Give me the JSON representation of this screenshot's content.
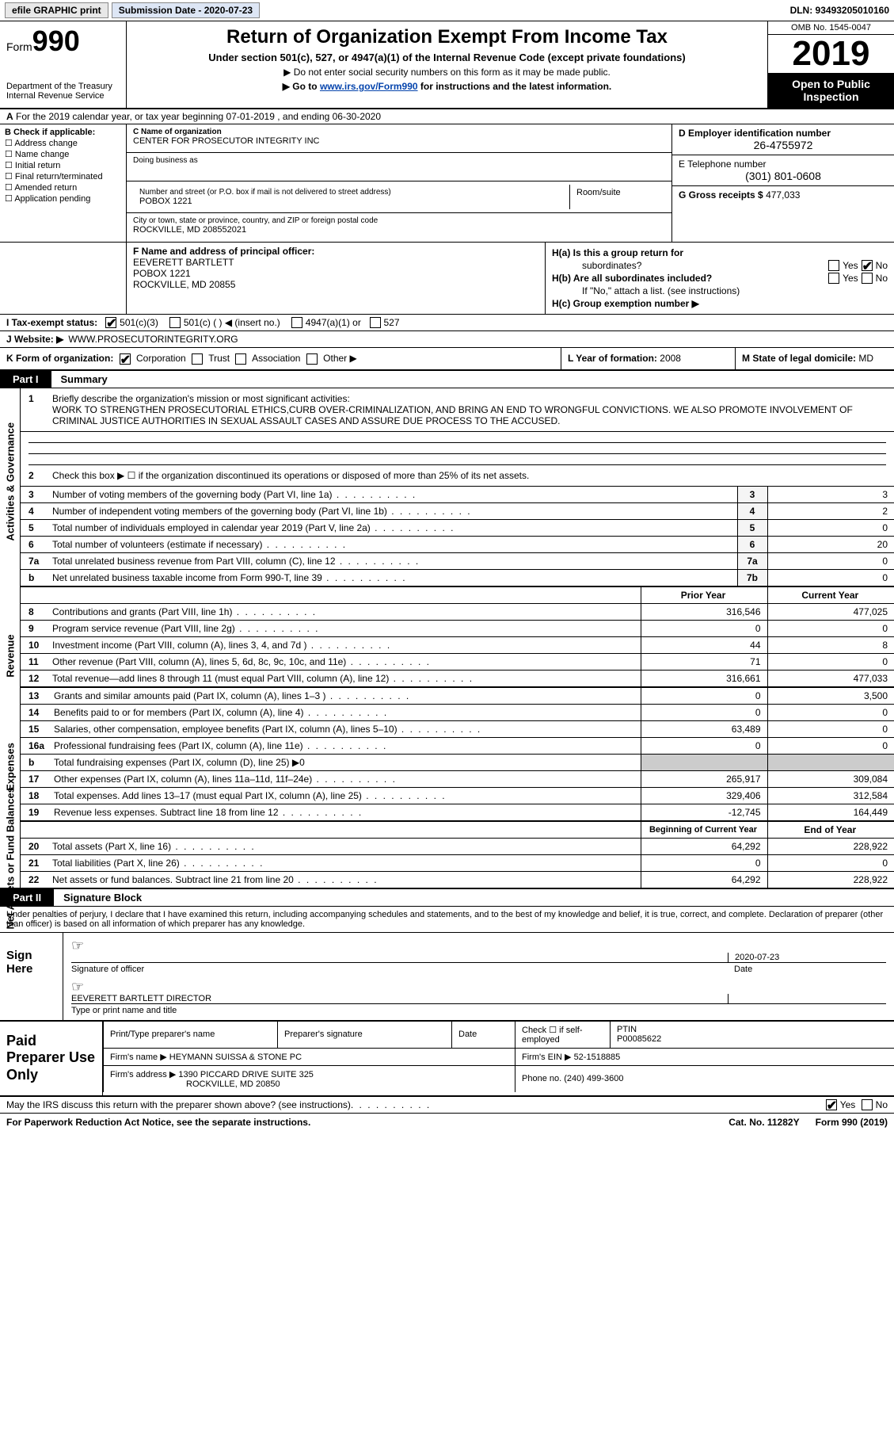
{
  "topbar": {
    "efile": "efile GRAPHIC print",
    "sub_date": "Submission Date - 2020-07-23",
    "dln": "DLN: 93493205010160"
  },
  "header": {
    "form_word": "Form",
    "form_num": "990",
    "dept": "Department of the Treasury\nInternal Revenue Service",
    "title": "Return of Organization Exempt From Income Tax",
    "sub": "Under section 501(c), 527, or 4947(a)(1) of the Internal Revenue Code (except private foundations)",
    "note1": "▶ Do not enter social security numbers on this form as it may be made public.",
    "note2_pre": "▶ Go to ",
    "note2_link": "www.irs.gov/Form990",
    "note2_post": " for instructions and the latest information.",
    "omb": "OMB No. 1545-0047",
    "year": "2019",
    "open": "Open to Public Inspection"
  },
  "rowA": "For the 2019 calendar year, or tax year beginning 07-01-2019    , and ending 06-30-2020",
  "boxB": {
    "hdr": "B Check if applicable:",
    "items": [
      "Address change",
      "Name change",
      "Initial return",
      "Final return/terminated",
      "Amended return",
      "Application pending"
    ]
  },
  "boxC": {
    "name_lbl": "C Name of organization",
    "name": "CENTER FOR PROSECUTOR INTEGRITY INC",
    "dba_lbl": "Doing business as",
    "addr_lbl": "Number and street (or P.O. box if mail is not delivered to street address)",
    "room_lbl": "Room/suite",
    "addr": "POBOX 1221",
    "city_lbl": "City or town, state or province, country, and ZIP or foreign postal code",
    "city": "ROCKVILLE, MD  208552021"
  },
  "boxD": {
    "ein_lbl": "D Employer identification number",
    "ein": "26-4755972",
    "tel_lbl": "E Telephone number",
    "tel": "(301) 801-0608",
    "gross_lbl": "G Gross receipts $",
    "gross": "477,033"
  },
  "boxF": {
    "lbl": "F  Name and address of principal officer:",
    "name": "EEVERETT BARTLETT",
    "addr1": "POBOX 1221",
    "addr2": "ROCKVILLE, MD  20855"
  },
  "boxH": {
    "ha": "H(a)  Is this a group return for",
    "ha2": "subordinates?",
    "hb": "H(b)  Are all subordinates included?",
    "hb2": "If \"No,\" attach a list. (see instructions)",
    "hc": "H(c)  Group exemption number ▶",
    "yes": "Yes",
    "no": "No"
  },
  "rowI": {
    "lbl": "I   Tax-exempt status:",
    "o1": "501(c)(3)",
    "o2": "501(c) (  ) ◀ (insert no.)",
    "o3": "4947(a)(1) or",
    "o4": "527"
  },
  "rowJ": {
    "lbl": "J   Website: ▶",
    "val": "WWW.PROSECUTORINTEGRITY.ORG"
  },
  "rowK": {
    "lbl": "K Form of organization:",
    "o1": "Corporation",
    "o2": "Trust",
    "o3": "Association",
    "o4": "Other ▶"
  },
  "rowL": {
    "lbl": "L Year of formation:",
    "val": "2008"
  },
  "rowM": {
    "lbl": "M State of legal domicile:",
    "val": "MD"
  },
  "part1": {
    "tag": "Part I",
    "title": "Summary"
  },
  "summary": {
    "l1_lbl": "Briefly describe the organization's mission or most significant activities:",
    "l1_txt": "WORK TO STRENGTHEN PROSECUTORIAL ETHICS,CURB OVER-CRIMINALIZATION, AND BRING AN END TO WRONGFUL CONVICTIONS. WE ALSO PROMOTE INVOLVEMENT OF CRIMINAL JUSTICE AUTHORITIES IN SEXUAL ASSAULT CASES AND ASSURE DUE PROCESS TO THE ACCUSED.",
    "l2": "Check this box ▶ ☐  if the organization discontinued its operations or disposed of more than 25% of its net assets."
  },
  "gov_rows": [
    {
      "n": "3",
      "lab": "Number of voting members of the governing body (Part VI, line 1a)",
      "box": "3",
      "val": "3"
    },
    {
      "n": "4",
      "lab": "Number of independent voting members of the governing body (Part VI, line 1b)",
      "box": "4",
      "val": "2"
    },
    {
      "n": "5",
      "lab": "Total number of individuals employed in calendar year 2019 (Part V, line 2a)",
      "box": "5",
      "val": "0"
    },
    {
      "n": "6",
      "lab": "Total number of volunteers (estimate if necessary)",
      "box": "6",
      "val": "20"
    },
    {
      "n": "7a",
      "lab": "Total unrelated business revenue from Part VIII, column (C), line 12",
      "box": "7a",
      "val": "0"
    },
    {
      "n": "b",
      "lab": "Net unrelated business taxable income from Form 990-T, line 39",
      "box": "7b",
      "val": "0"
    }
  ],
  "yr_hdr": {
    "py": "Prior Year",
    "cy": "Current Year"
  },
  "rev_rows": [
    {
      "n": "8",
      "lab": "Contributions and grants (Part VIII, line 1h)",
      "py": "316,546",
      "cy": "477,025"
    },
    {
      "n": "9",
      "lab": "Program service revenue (Part VIII, line 2g)",
      "py": "0",
      "cy": "0"
    },
    {
      "n": "10",
      "lab": "Investment income (Part VIII, column (A), lines 3, 4, and 7d )",
      "py": "44",
      "cy": "8"
    },
    {
      "n": "11",
      "lab": "Other revenue (Part VIII, column (A), lines 5, 6d, 8c, 9c, 10c, and 11e)",
      "py": "71",
      "cy": "0"
    },
    {
      "n": "12",
      "lab": "Total revenue—add lines 8 through 11 (must equal Part VIII, column (A), line 12)",
      "py": "316,661",
      "cy": "477,033"
    }
  ],
  "exp_rows": [
    {
      "n": "13",
      "lab": "Grants and similar amounts paid (Part IX, column (A), lines 1–3 )",
      "py": "0",
      "cy": "3,500"
    },
    {
      "n": "14",
      "lab": "Benefits paid to or for members (Part IX, column (A), line 4)",
      "py": "0",
      "cy": "0"
    },
    {
      "n": "15",
      "lab": "Salaries, other compensation, employee benefits (Part IX, column (A), lines 5–10)",
      "py": "63,489",
      "cy": "0"
    },
    {
      "n": "16a",
      "lab": "Professional fundraising fees (Part IX, column (A), line 11e)",
      "py": "0",
      "cy": "0"
    },
    {
      "n": "b",
      "lab": "Total fundraising expenses (Part IX, column (D), line 25) ▶0",
      "py": "",
      "cy": "",
      "shade": true
    },
    {
      "n": "17",
      "lab": "Other expenses (Part IX, column (A), lines 11a–11d, 11f–24e)",
      "py": "265,917",
      "cy": "309,084"
    },
    {
      "n": "18",
      "lab": "Total expenses. Add lines 13–17 (must equal Part IX, column (A), line 25)",
      "py": "329,406",
      "cy": "312,584"
    },
    {
      "n": "19",
      "lab": "Revenue less expenses. Subtract line 18 from line 12",
      "py": "-12,745",
      "cy": "164,449"
    }
  ],
  "na_hdr": {
    "py": "Beginning of Current Year",
    "cy": "End of Year"
  },
  "na_rows": [
    {
      "n": "20",
      "lab": "Total assets (Part X, line 16)",
      "py": "64,292",
      "cy": "228,922"
    },
    {
      "n": "21",
      "lab": "Total liabilities (Part X, line 26)",
      "py": "0",
      "cy": "0"
    },
    {
      "n": "22",
      "lab": "Net assets or fund balances. Subtract line 21 from line 20",
      "py": "64,292",
      "cy": "228,922"
    }
  ],
  "part2": {
    "tag": "Part II",
    "title": "Signature Block"
  },
  "sig": {
    "penalty": "Under penalties of perjury, I declare that I have examined this return, including accompanying schedules and statements, and to the best of my knowledge and belief, it is true, correct, and complete. Declaration of preparer (other than officer) is based on all information of which preparer has any knowledge.",
    "sign_here": "Sign Here",
    "sig_off": "Signature of officer",
    "date_lbl": "Date",
    "date": "2020-07-23",
    "name": "EEVERETT BARTLETT DIRECTOR",
    "name_lbl": "Type or print name and title"
  },
  "prep": {
    "hdr": "Paid Preparer Use Only",
    "c1": "Print/Type preparer's name",
    "c2": "Preparer's signature",
    "c3": "Date",
    "c4a": "Check ☐ if self-employed",
    "c5": "PTIN",
    "ptin": "P00085622",
    "firm_lbl": "Firm's name    ▶",
    "firm": "HEYMANN SUISSA & STONE PC",
    "ein_lbl": "Firm's EIN ▶",
    "ein": "52-1518885",
    "addr_lbl": "Firm's address ▶",
    "addr": "1390 PICCARD DRIVE SUITE 325",
    "addr2": "ROCKVILLE, MD  20850",
    "phone_lbl": "Phone no.",
    "phone": "(240) 499-3600"
  },
  "discuss": {
    "q": "May the IRS discuss this return with the preparer shown above? (see instructions)",
    "yes": "Yes",
    "no": "No"
  },
  "footer": {
    "pra": "For Paperwork Reduction Act Notice, see the separate instructions.",
    "cat": "Cat. No. 11282Y",
    "form": "Form 990 (2019)"
  },
  "side": {
    "gov": "Activities & Governance",
    "rev": "Revenue",
    "exp": "Expenses",
    "na": "Net Assets or Fund Balances"
  }
}
